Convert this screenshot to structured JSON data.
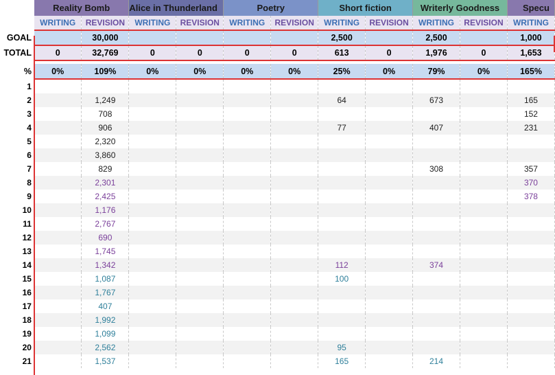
{
  "projects": [
    {
      "name": "Reality Bomb",
      "color": "#8878ad"
    },
    {
      "name": "Alice in Thunderland",
      "color": "#6a6fa6"
    },
    {
      "name": "Poetry",
      "color": "#7b92c8"
    },
    {
      "name": "Short fiction",
      "color": "#6fb0c8"
    },
    {
      "name": "Writerly Goodness",
      "color": "#76b89c"
    },
    {
      "name": "Specu",
      "color": "#8878ad"
    }
  ],
  "subheaders": [
    "WRITING",
    "REVISION",
    "WRITING",
    "REVISION",
    "WRITING",
    "REVISION",
    "WRITING",
    "REVISION",
    "WRITING",
    "REVISION",
    "WRITING"
  ],
  "summary": {
    "goal_label": "GOAL",
    "total_label": "TOTAL",
    "pct_label": "%",
    "goal": [
      "",
      "30,000",
      "",
      "",
      "",
      "",
      "2,500",
      "",
      "2,500",
      "",
      "1,000"
    ],
    "total": [
      "0",
      "32,769",
      "0",
      "0",
      "0",
      "0",
      "613",
      "0",
      "1,976",
      "0",
      "1,653"
    ],
    "pct": [
      "0%",
      "109%",
      "0%",
      "0%",
      "0%",
      "0%",
      "25%",
      "0%",
      "79%",
      "0%",
      "165%"
    ]
  },
  "days": [
    {
      "day": "1",
      "cells": [
        "",
        "",
        "",
        "",
        "",
        "",
        "",
        "",
        "",
        "",
        ""
      ]
    },
    {
      "day": "2",
      "cells": [
        "",
        "1,249",
        "",
        "",
        "",
        "",
        "64",
        "",
        "673",
        "",
        "165"
      ]
    },
    {
      "day": "3",
      "cells": [
        "",
        "708",
        "",
        "",
        "",
        "",
        "",
        "",
        "",
        "",
        "152"
      ]
    },
    {
      "day": "4",
      "cells": [
        "",
        "906",
        "",
        "",
        "",
        "",
        "77",
        "",
        "407",
        "",
        "231"
      ]
    },
    {
      "day": "5",
      "cells": [
        "",
        "2,320",
        "",
        "",
        "",
        "",
        "",
        "",
        "",
        "",
        ""
      ]
    },
    {
      "day": "6",
      "cells": [
        "",
        "3,860",
        "",
        "",
        "",
        "",
        "",
        "",
        "",
        "",
        ""
      ]
    },
    {
      "day": "7",
      "cells": [
        "",
        "829",
        "",
        "",
        "",
        "",
        "",
        "",
        "308",
        "",
        "357"
      ]
    },
    {
      "day": "8",
      "cells": [
        "",
        "2,301",
        "",
        "",
        "",
        "",
        "",
        "",
        "",
        "",
        "370"
      ]
    },
    {
      "day": "9",
      "cells": [
        "",
        "2,425",
        "",
        "",
        "",
        "",
        "",
        "",
        "",
        "",
        "378"
      ]
    },
    {
      "day": "10",
      "cells": [
        "",
        "1,176",
        "",
        "",
        "",
        "",
        "",
        "",
        "",
        "",
        ""
      ]
    },
    {
      "day": "11",
      "cells": [
        "",
        "2,767",
        "",
        "",
        "",
        "",
        "",
        "",
        "",
        "",
        ""
      ]
    },
    {
      "day": "12",
      "cells": [
        "",
        "690",
        "",
        "",
        "",
        "",
        "",
        "",
        "",
        "",
        ""
      ]
    },
    {
      "day": "13",
      "cells": [
        "",
        "1,745",
        "",
        "",
        "",
        "",
        "",
        "",
        "",
        "",
        ""
      ]
    },
    {
      "day": "14",
      "cells": [
        "",
        "1,342",
        "",
        "",
        "",
        "",
        "112",
        "",
        "374",
        "",
        ""
      ]
    },
    {
      "day": "15",
      "cells": [
        "",
        "1,087",
        "",
        "",
        "",
        "",
        "100",
        "",
        "",
        "",
        ""
      ]
    },
    {
      "day": "16",
      "cells": [
        "",
        "1,767",
        "",
        "",
        "",
        "",
        "",
        "",
        "",
        "",
        ""
      ]
    },
    {
      "day": "17",
      "cells": [
        "",
        "407",
        "",
        "",
        "",
        "",
        "",
        "",
        "",
        "",
        ""
      ]
    },
    {
      "day": "18",
      "cells": [
        "",
        "1,992",
        "",
        "",
        "",
        "",
        "",
        "",
        "",
        "",
        ""
      ]
    },
    {
      "day": "19",
      "cells": [
        "",
        "1,099",
        "",
        "",
        "",
        "",
        "",
        "",
        "",
        "",
        ""
      ]
    },
    {
      "day": "20",
      "cells": [
        "",
        "2,562",
        "",
        "",
        "",
        "",
        "95",
        "",
        "",
        "",
        ""
      ]
    },
    {
      "day": "21",
      "cells": [
        "",
        "1,537",
        "",
        "",
        "",
        "",
        "165",
        "",
        "214",
        "",
        ""
      ]
    }
  ],
  "colors": {
    "black_text": "#1e1e1e",
    "purple_text": "#7a3f9a",
    "teal_text": "#2e7f9a",
    "border_red": "#dd3333",
    "goal_fill": "#c7daf1",
    "total_fill": "#e9e4f1"
  }
}
